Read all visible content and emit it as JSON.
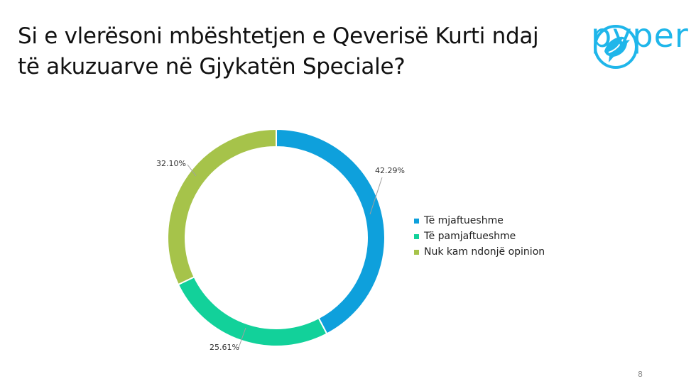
{
  "slide": {
    "title_line1": "Si e vlerësoni mbështetjen e Qeverisë Kurti ndaj",
    "title_line2": "të akuzuarve në Gjykatën Speciale?",
    "logo_text": "pyper",
    "page_number": "8"
  },
  "colors": {
    "accent": "#1fb6ea"
  },
  "chart_data": {
    "type": "pie",
    "donut": true,
    "labels": [
      "Të mjaftueshme",
      "Të pamjaftueshme",
      "Nuk kam ndonjë opinion"
    ],
    "values": [
      42.29,
      25.61,
      32.1
    ],
    "data_labels": [
      "42.29%",
      "25.61%",
      "32.10%"
    ],
    "colors": [
      "#0ea0dc",
      "#12d19a",
      "#a6c34a"
    ],
    "legend": "right"
  }
}
